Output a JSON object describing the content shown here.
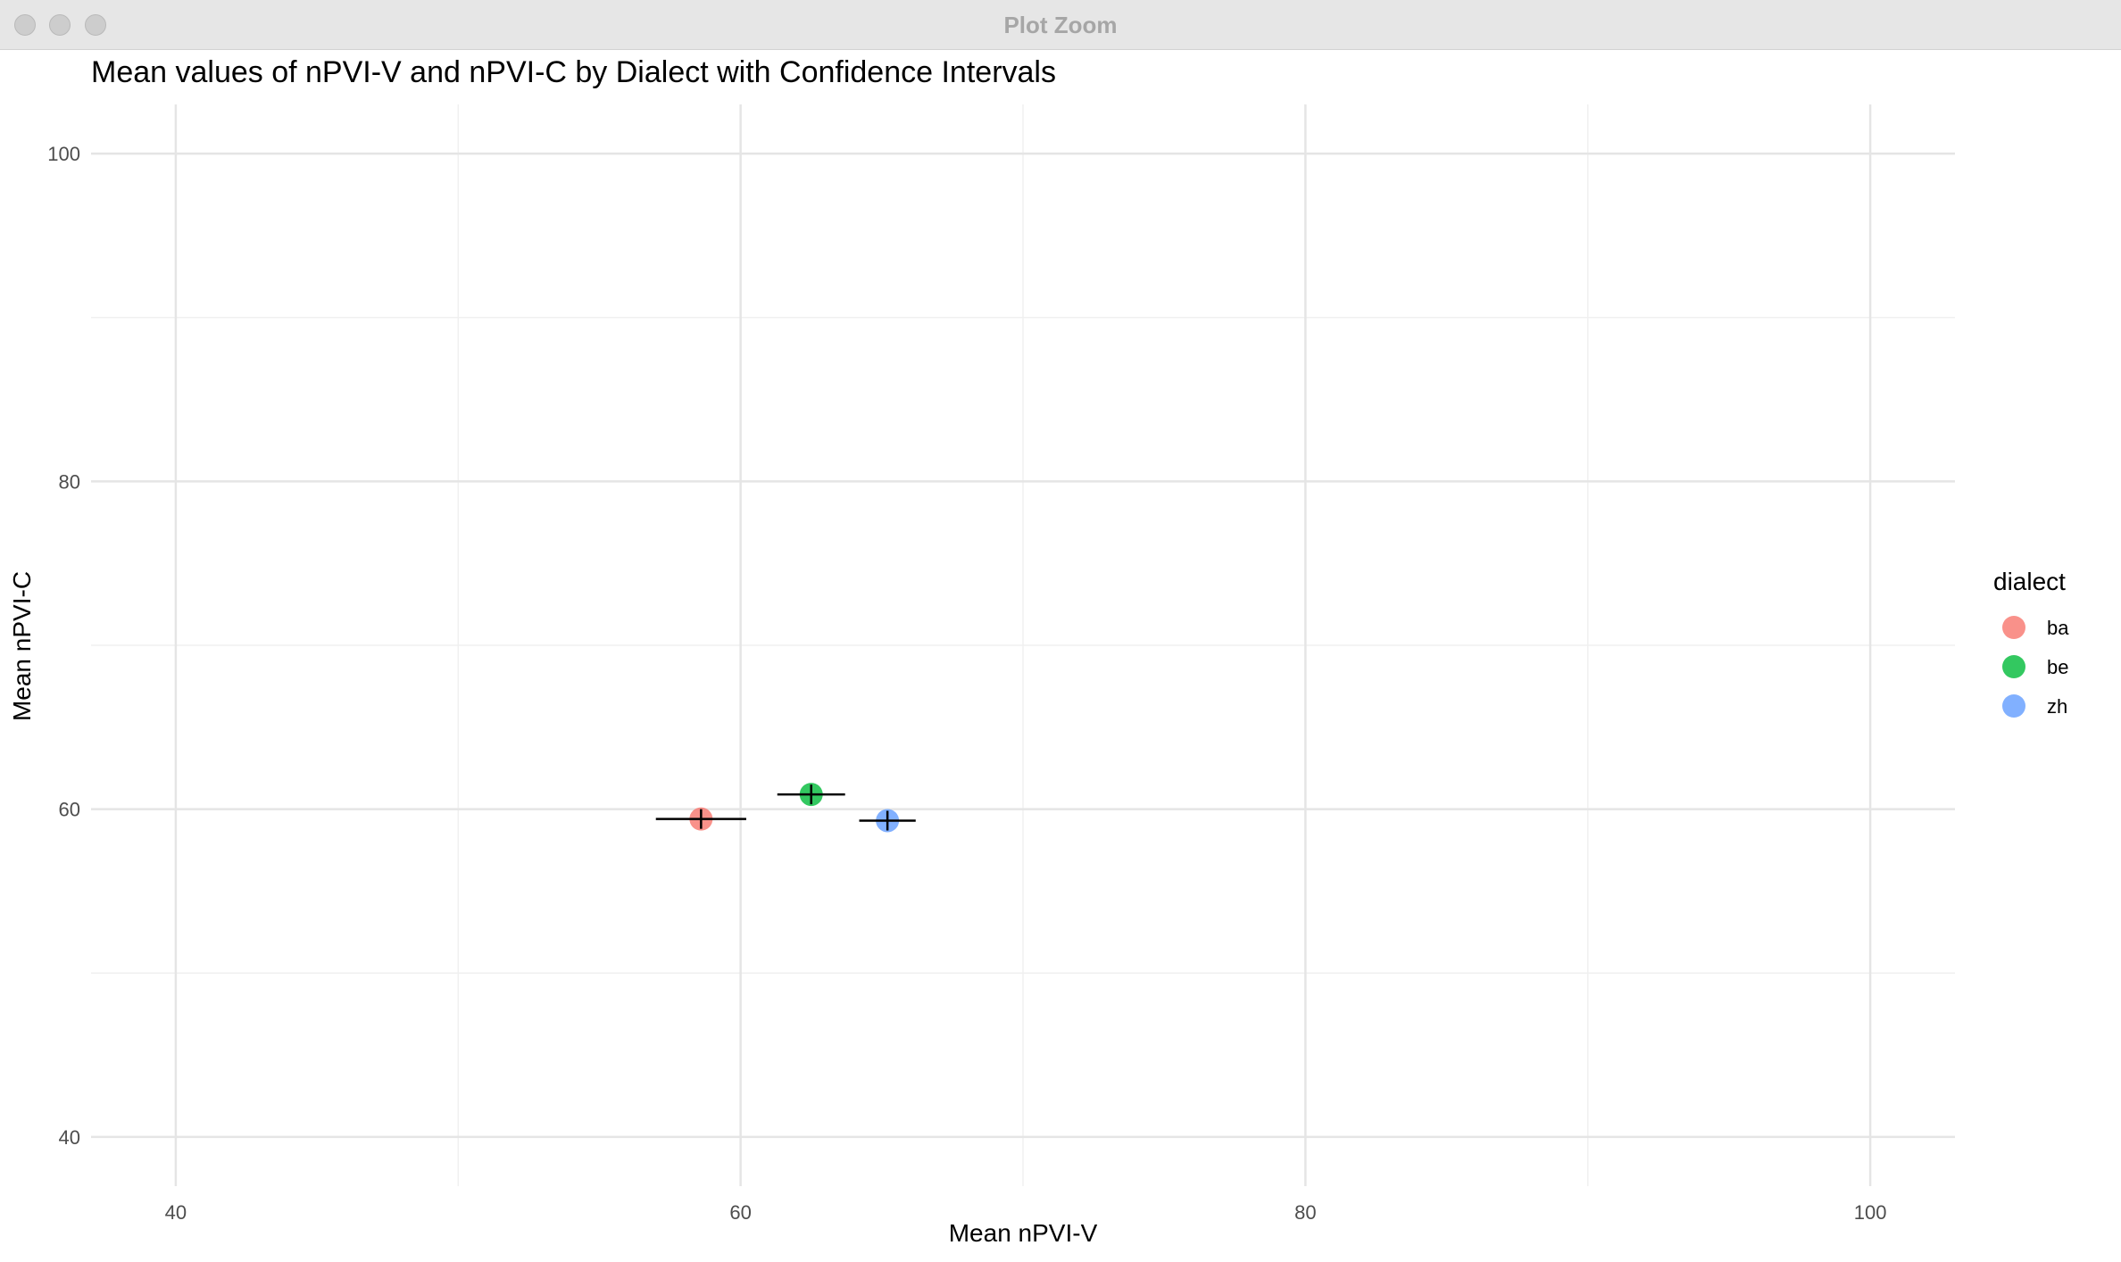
{
  "window": {
    "title": "Plot Zoom"
  },
  "chart_data": {
    "type": "scatter",
    "title": "Mean values of nPVI-V and nPVI-C by Dialect with Confidence Intervals",
    "xlabel": "Mean nPVI-V",
    "ylabel": "Mean nPVI-C",
    "xlim": [
      37,
      103
    ],
    "ylim": [
      37,
      103
    ],
    "x_ticks": [
      40,
      60,
      80,
      100
    ],
    "y_ticks": [
      40,
      60,
      80,
      100
    ],
    "grid": true,
    "legend": {
      "title": "dialect",
      "position": "right"
    },
    "series": [
      {
        "name": "ba",
        "color": "#F8766D",
        "x": 58.6,
        "y": 59.4,
        "x_ci": [
          57.0,
          60.2
        ],
        "y_ci": [
          58.8,
          60.0
        ]
      },
      {
        "name": "be",
        "color": "#00BA38",
        "x": 62.5,
        "y": 60.9,
        "x_ci": [
          61.3,
          63.7
        ],
        "y_ci": [
          60.3,
          61.5
        ]
      },
      {
        "name": "zh",
        "color": "#619CFF",
        "x": 65.2,
        "y": 59.3,
        "x_ci": [
          64.2,
          66.2
        ],
        "y_ci": [
          58.7,
          59.9
        ]
      }
    ]
  }
}
